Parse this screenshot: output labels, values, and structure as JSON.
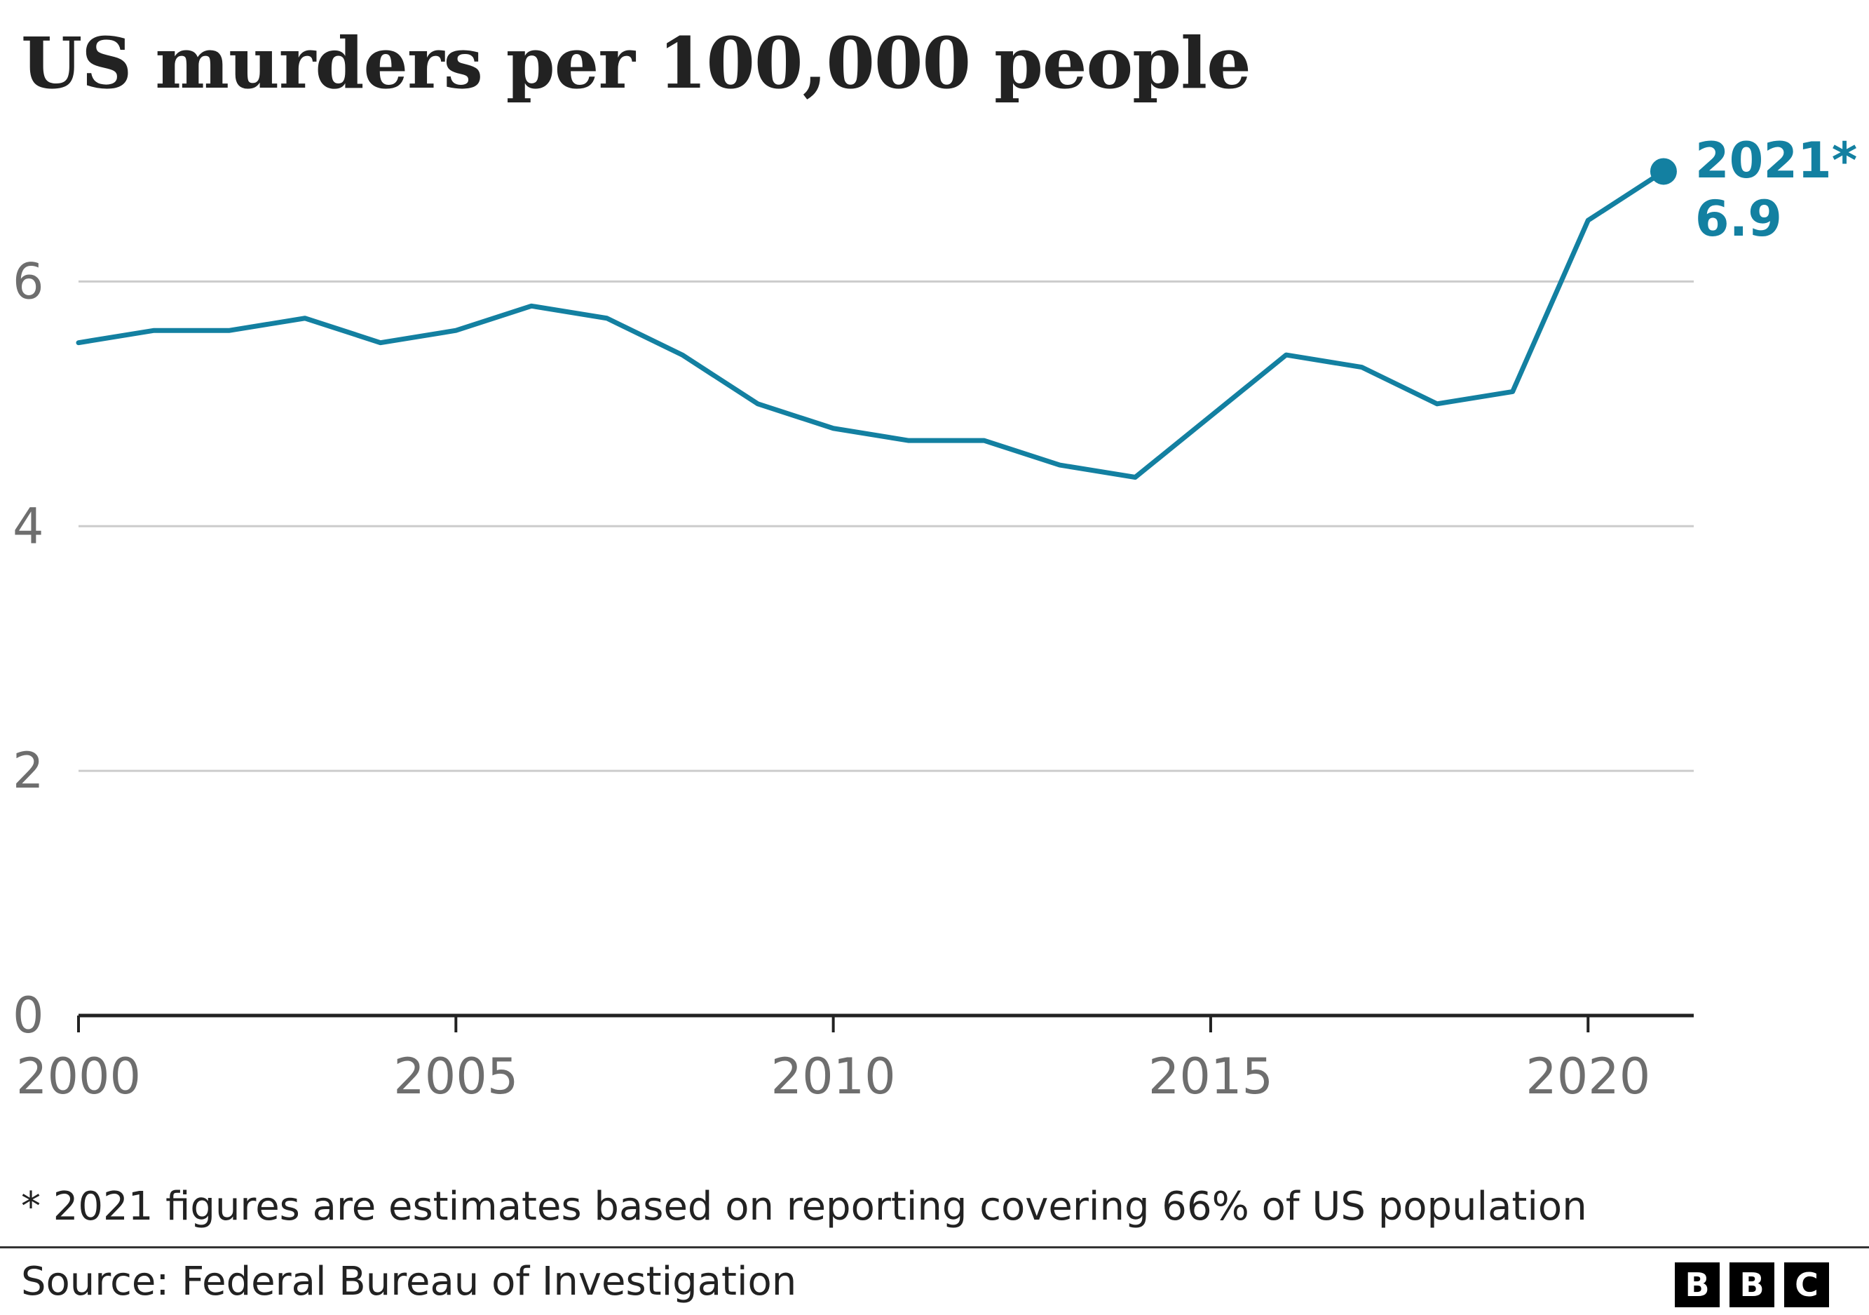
{
  "chart_data": {
    "type": "line",
    "title": "US murders per 100,000 people",
    "x": [
      2000,
      2001,
      2002,
      2003,
      2004,
      2005,
      2006,
      2007,
      2008,
      2009,
      2010,
      2011,
      2012,
      2013,
      2014,
      2015,
      2016,
      2017,
      2018,
      2019,
      2020,
      2021
    ],
    "series": [
      {
        "values": [
          5.5,
          5.6,
          5.6,
          5.7,
          5.5,
          5.6,
          5.8,
          5.7,
          5.4,
          5.0,
          4.8,
          4.7,
          4.7,
          4.5,
          4.4,
          4.9,
          5.4,
          5.3,
          5.0,
          5.1,
          6.5,
          6.9
        ]
      }
    ],
    "xlim": [
      2000,
      2021.4
    ],
    "ylim": [
      0,
      7
    ],
    "xticks": [
      2000,
      2005,
      2010,
      2015,
      2020
    ],
    "yticks": [
      0,
      2,
      4,
      6
    ],
    "grid": true,
    "line_color": "#1380a1",
    "end_label": {
      "year": "2021*",
      "value": "6.9"
    }
  },
  "footnote": "* 2021 figures are estimates based on reporting covering 66% of US population",
  "source": "Source: Federal Bureau of Investigation",
  "logo": [
    "B",
    "B",
    "C"
  ]
}
